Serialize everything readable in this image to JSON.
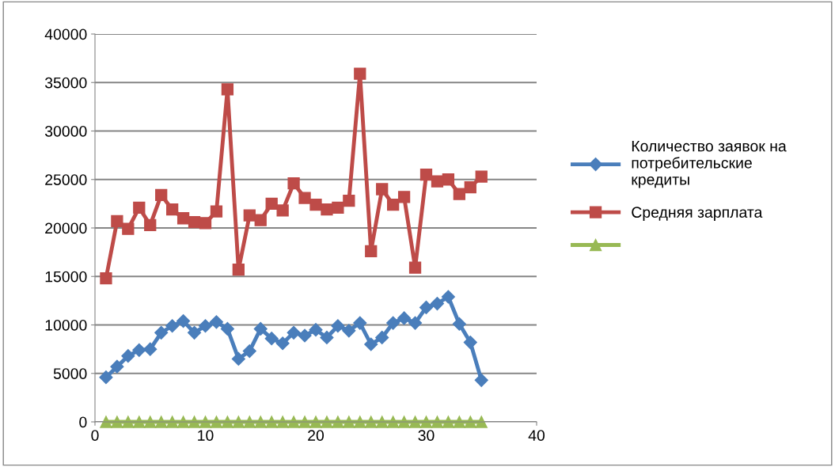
{
  "chart_data": {
    "type": "line",
    "x": [
      1,
      2,
      3,
      4,
      5,
      6,
      7,
      8,
      9,
      10,
      11,
      12,
      13,
      14,
      15,
      16,
      17,
      18,
      19,
      20,
      21,
      22,
      23,
      24,
      25,
      26,
      27,
      28,
      29,
      30,
      31,
      32,
      33,
      34,
      35
    ],
    "series": [
      {
        "name": "Количество заявок на потребительские кредиты",
        "color": "#4a7ebb",
        "marker": "diamond",
        "values": [
          4600,
          5700,
          6800,
          7400,
          7500,
          9200,
          9900,
          10400,
          9200,
          9900,
          10300,
          9600,
          6500,
          7300,
          9600,
          8600,
          8100,
          9200,
          8900,
          9500,
          8700,
          9900,
          9400,
          10200,
          8000,
          8700,
          10200,
          10700,
          10200,
          11800,
          12200,
          12900,
          10100,
          8200,
          4300
        ]
      },
      {
        "name": "Средняя зарплата",
        "color": "#be4b48",
        "marker": "square",
        "values": [
          14800,
          20700,
          19900,
          22100,
          20300,
          23400,
          21900,
          21000,
          20600,
          20500,
          21700,
          34300,
          15700,
          21300,
          20800,
          22500,
          21800,
          24600,
          23100,
          22400,
          21900,
          22100,
          22800,
          35900,
          17600,
          24000,
          22400,
          23200,
          15900,
          25500,
          24800,
          25000,
          23500,
          24200,
          25300
        ]
      },
      {
        "color": "#98b954",
        "marker": "triangle",
        "values": [
          0,
          0,
          0,
          0,
          0,
          0,
          0,
          0,
          0,
          0,
          0,
          0,
          0,
          0,
          0,
          0,
          0,
          0,
          0,
          0,
          0,
          0,
          0,
          0,
          0,
          0,
          0,
          0,
          0,
          0,
          0,
          0,
          0,
          0,
          0
        ]
      }
    ],
    "xlim": [
      0,
      40
    ],
    "xticks": [
      0,
      10,
      20,
      30,
      40
    ],
    "ylim": [
      0,
      40000
    ],
    "yticks": [
      0,
      5000,
      10000,
      15000,
      20000,
      25000,
      30000,
      35000,
      40000
    ],
    "grid": "y",
    "legend": "right"
  }
}
